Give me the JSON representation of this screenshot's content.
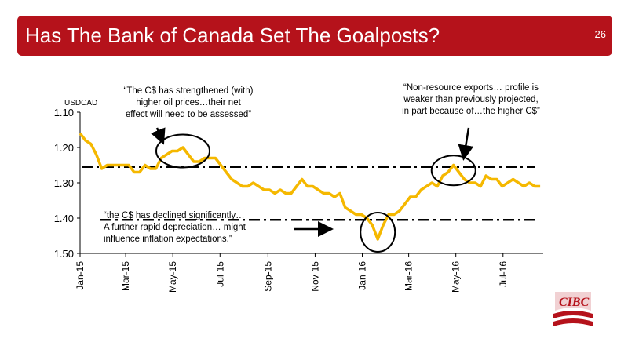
{
  "header": {
    "title": "Has The Bank of Canada Set The Goalposts?",
    "page_number": "26"
  },
  "annotations": {
    "quote1": "“The C$ has strengthened (with) higher oil prices…their net effect will need to be assessed”",
    "quote1_lines": [
      "“The C$ has strengthened (with)",
      "higher oil prices…their net",
      "effect will need to be assessed”"
    ],
    "quote2_lines": [
      "“Non-resource exports… profile is",
      "weaker than previously projected,",
      "in part because of…the higher C$”"
    ],
    "quote3_lines": [
      "“the C$ has declined significantly…",
      "A further rapid depreciation… might",
      "influence inflation expectations.”"
    ]
  },
  "logo": {
    "text": "CIBC"
  },
  "colors": {
    "accent": "#b5121b",
    "series": "#f5b800"
  },
  "chart_data": {
    "type": "line",
    "ylabel": "USDCAD",
    "ylim": [
      1.1,
      1.5
    ],
    "y_inverted": true,
    "yticks": [
      "1.10",
      "1.20",
      "1.30",
      "1.40",
      "1.50"
    ],
    "xticks": [
      "Jan-15",
      "Mar-15",
      "May-15",
      "Jul-15",
      "Sep-15",
      "Nov-15",
      "Jan-16",
      "Mar-16",
      "May-16",
      "Jul-16"
    ],
    "reference_lines": [
      1.255,
      1.405
    ],
    "series": [
      {
        "values": [
          [
            "2015-01-01",
            1.16
          ],
          [
            "2015-01-08",
            1.18
          ],
          [
            "2015-01-15",
            1.19
          ],
          [
            "2015-01-22",
            1.22
          ],
          [
            "2015-01-29",
            1.26
          ],
          [
            "2015-02-05",
            1.25
          ],
          [
            "2015-02-12",
            1.25
          ],
          [
            "2015-02-19",
            1.25
          ],
          [
            "2015-02-26",
            1.25
          ],
          [
            "2015-03-05",
            1.25
          ],
          [
            "2015-03-12",
            1.27
          ],
          [
            "2015-03-19",
            1.27
          ],
          [
            "2015-03-26",
            1.25
          ],
          [
            "2015-04-02",
            1.26
          ],
          [
            "2015-04-09",
            1.26
          ],
          [
            "2015-04-16",
            1.23
          ],
          [
            "2015-04-23",
            1.22
          ],
          [
            "2015-04-30",
            1.21
          ],
          [
            "2015-05-07",
            1.21
          ],
          [
            "2015-05-14",
            1.2
          ],
          [
            "2015-05-21",
            1.22
          ],
          [
            "2015-05-28",
            1.24
          ],
          [
            "2015-06-04",
            1.24
          ],
          [
            "2015-06-11",
            1.23
          ],
          [
            "2015-06-18",
            1.23
          ],
          [
            "2015-06-25",
            1.23
          ],
          [
            "2015-07-02",
            1.25
          ],
          [
            "2015-07-09",
            1.27
          ],
          [
            "2015-07-16",
            1.29
          ],
          [
            "2015-07-23",
            1.3
          ],
          [
            "2015-07-30",
            1.31
          ],
          [
            "2015-08-06",
            1.31
          ],
          [
            "2015-08-13",
            1.3
          ],
          [
            "2015-08-20",
            1.31
          ],
          [
            "2015-08-27",
            1.32
          ],
          [
            "2015-09-03",
            1.32
          ],
          [
            "2015-09-10",
            1.33
          ],
          [
            "2015-09-17",
            1.32
          ],
          [
            "2015-09-24",
            1.33
          ],
          [
            "2015-10-01",
            1.33
          ],
          [
            "2015-10-08",
            1.31
          ],
          [
            "2015-10-15",
            1.29
          ],
          [
            "2015-10-22",
            1.31
          ],
          [
            "2015-10-29",
            1.31
          ],
          [
            "2015-11-05",
            1.32
          ],
          [
            "2015-11-12",
            1.33
          ],
          [
            "2015-11-19",
            1.33
          ],
          [
            "2015-11-26",
            1.34
          ],
          [
            "2015-12-03",
            1.33
          ],
          [
            "2015-12-10",
            1.37
          ],
          [
            "2015-12-17",
            1.38
          ],
          [
            "2015-12-24",
            1.39
          ],
          [
            "2015-12-31",
            1.39
          ],
          [
            "2016-01-07",
            1.4
          ],
          [
            "2016-01-14",
            1.42
          ],
          [
            "2016-01-21",
            1.46
          ],
          [
            "2016-01-28",
            1.42
          ],
          [
            "2016-02-04",
            1.39
          ],
          [
            "2016-02-11",
            1.39
          ],
          [
            "2016-02-18",
            1.38
          ],
          [
            "2016-02-25",
            1.36
          ],
          [
            "2016-03-03",
            1.34
          ],
          [
            "2016-03-10",
            1.34
          ],
          [
            "2016-03-17",
            1.32
          ],
          [
            "2016-03-24",
            1.31
          ],
          [
            "2016-03-31",
            1.3
          ],
          [
            "2016-04-07",
            1.31
          ],
          [
            "2016-04-14",
            1.28
          ],
          [
            "2016-04-21",
            1.27
          ],
          [
            "2016-04-28",
            1.25
          ],
          [
            "2016-05-05",
            1.27
          ],
          [
            "2016-05-12",
            1.29
          ],
          [
            "2016-05-19",
            1.3
          ],
          [
            "2016-05-26",
            1.3
          ],
          [
            "2016-06-02",
            1.31
          ],
          [
            "2016-06-09",
            1.28
          ],
          [
            "2016-06-16",
            1.29
          ],
          [
            "2016-06-23",
            1.29
          ],
          [
            "2016-06-30",
            1.31
          ],
          [
            "2016-07-07",
            1.3
          ],
          [
            "2016-07-14",
            1.29
          ],
          [
            "2016-07-21",
            1.3
          ],
          [
            "2016-07-28",
            1.31
          ],
          [
            "2016-08-04",
            1.3
          ],
          [
            "2016-08-11",
            1.31
          ],
          [
            "2016-08-18",
            1.31
          ]
        ]
      }
    ],
    "highlights": [
      {
        "center": [
          "2015-05-14",
          1.21
        ]
      },
      {
        "center": [
          "2016-01-21",
          1.44
        ]
      },
      {
        "center": [
          "2016-04-28",
          1.265
        ]
      }
    ]
  }
}
